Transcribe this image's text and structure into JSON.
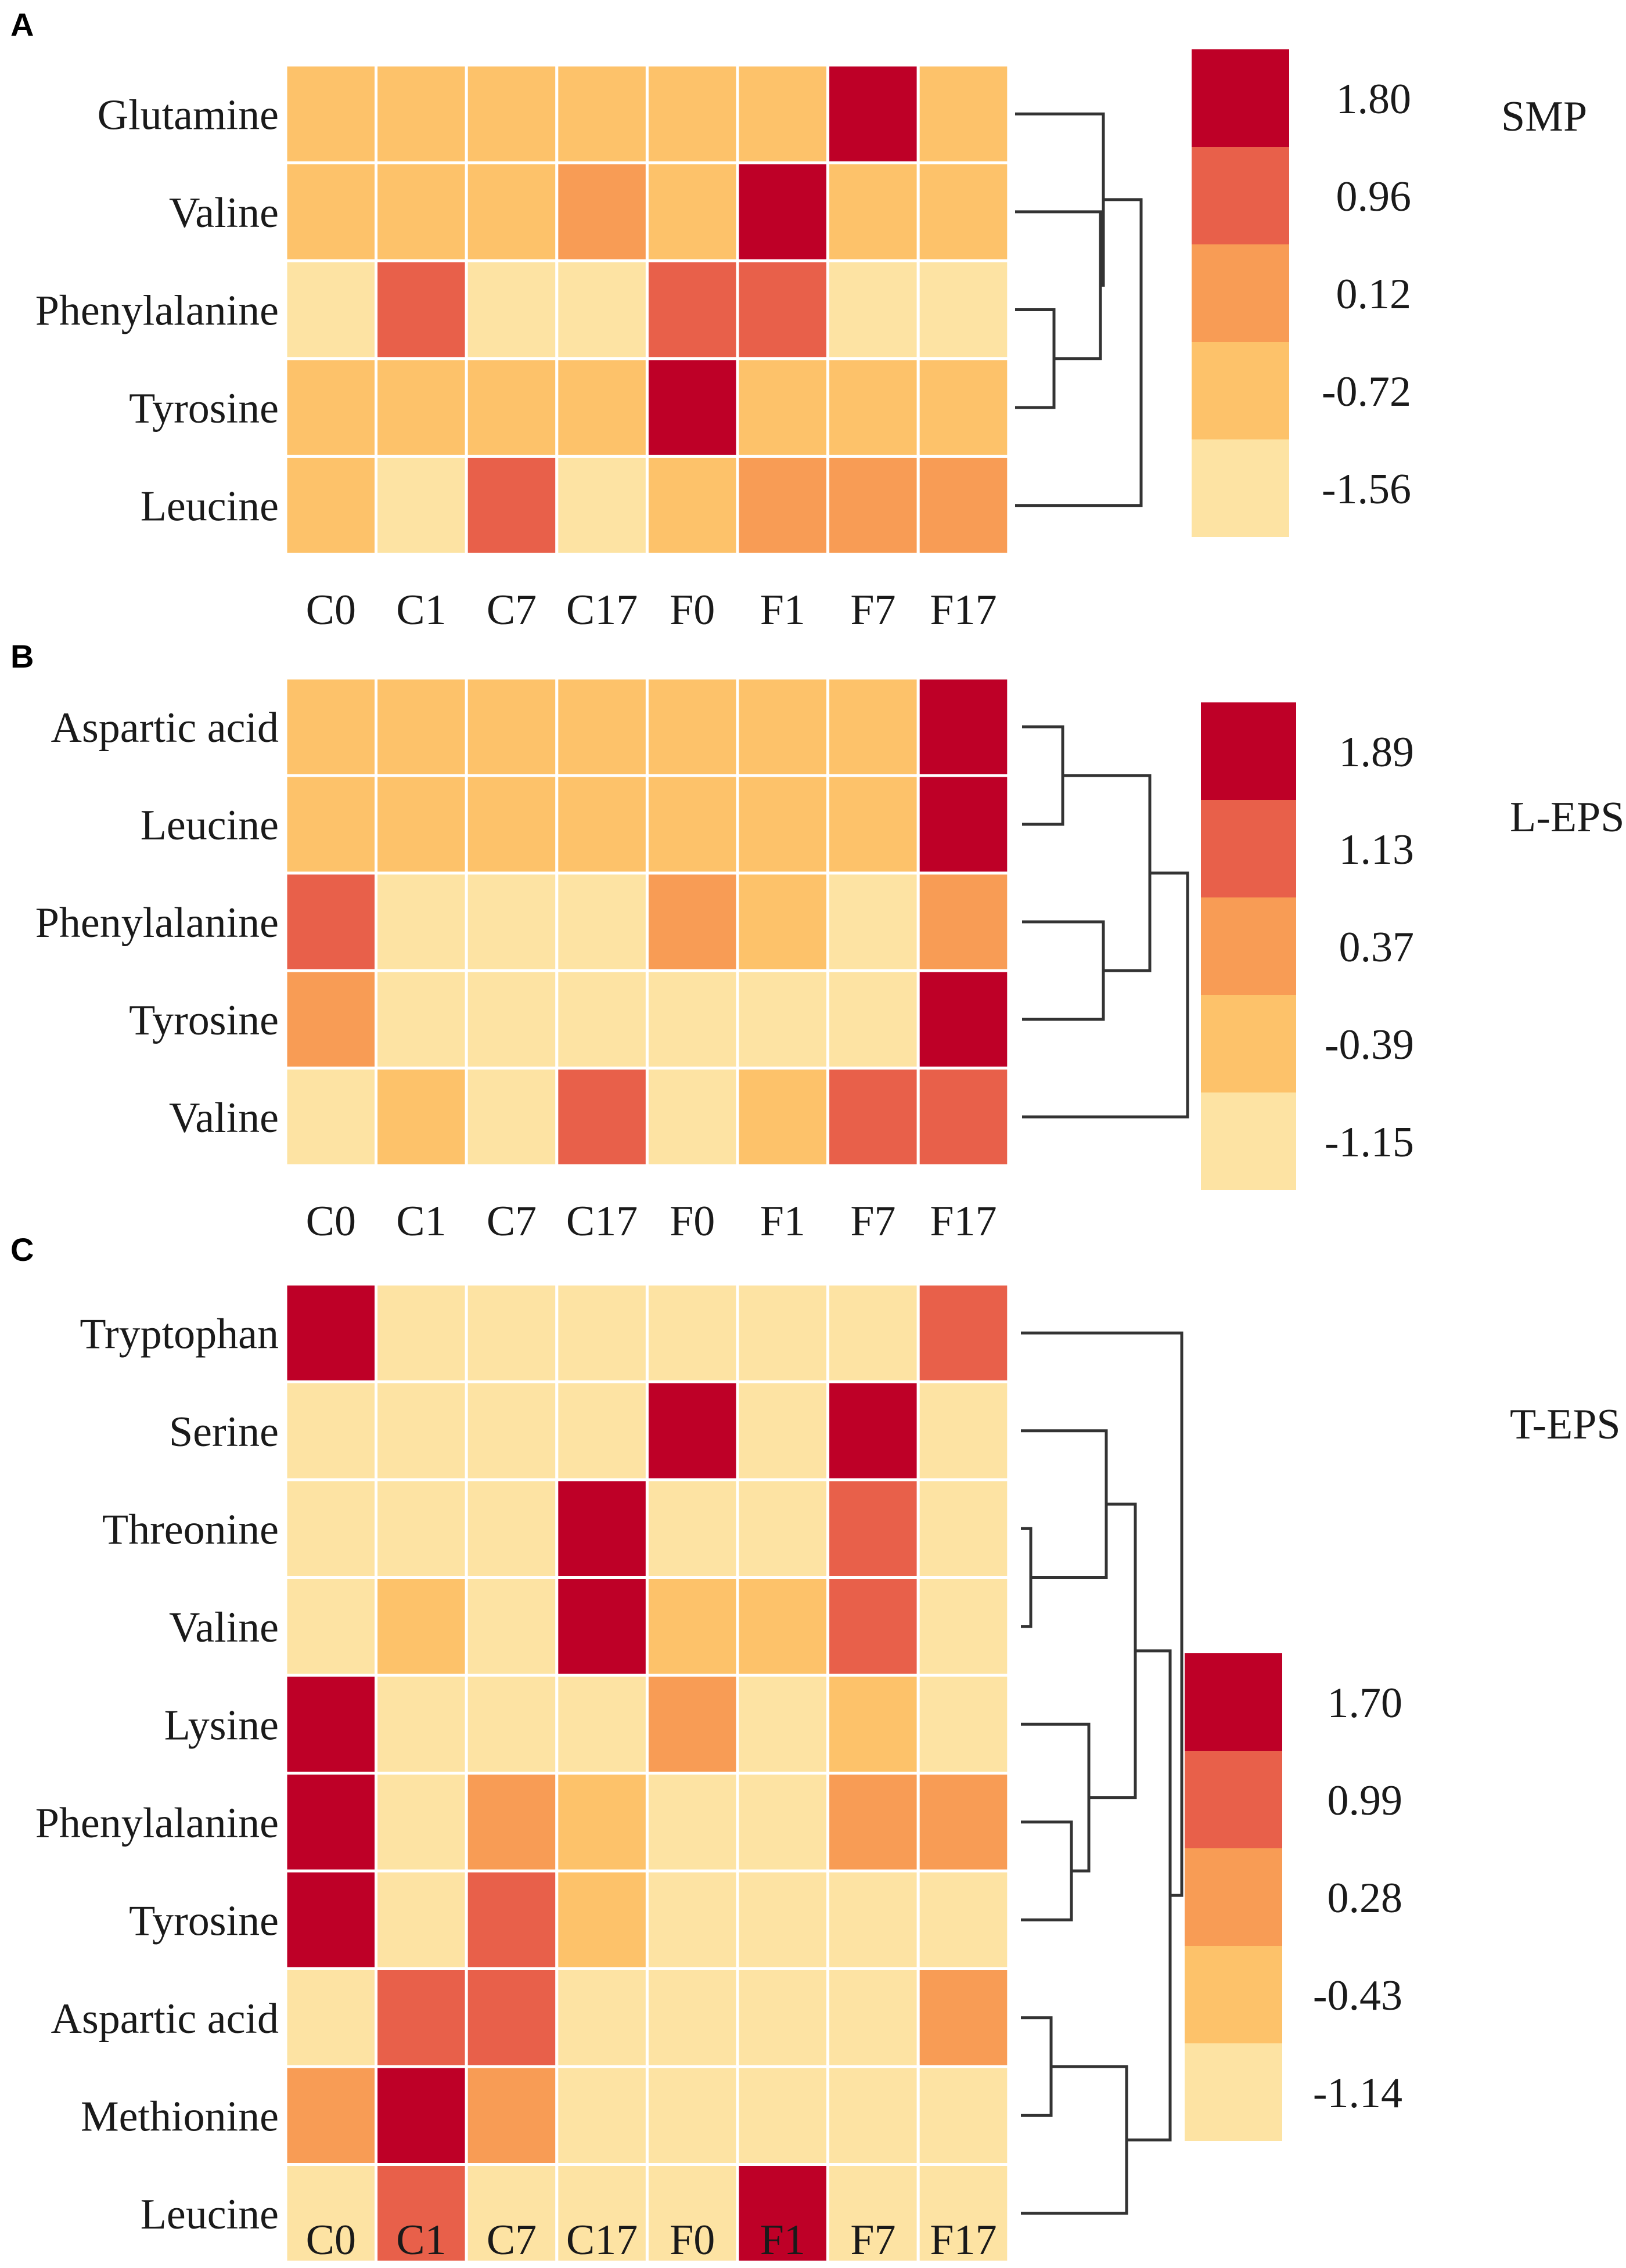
{
  "chart_data": [
    {
      "type": "heatmap",
      "panel": "A",
      "title": "SMP",
      "columns": [
        "C0",
        "C1",
        "C7",
        "C17",
        "F0",
        "F1",
        "F7",
        "F17"
      ],
      "rows": [
        "Glutamine",
        "Valine",
        "Phenylalanine",
        "Tyrosine",
        "Leucine"
      ],
      "values": [
        [
          -0.72,
          -0.72,
          -0.72,
          -0.72,
          -0.72,
          -0.72,
          1.8,
          -0.72
        ],
        [
          -0.72,
          -0.72,
          -0.72,
          0.12,
          -0.72,
          1.8,
          -0.72,
          -0.72
        ],
        [
          -1.56,
          0.96,
          -1.56,
          -1.56,
          0.96,
          0.96,
          -1.56,
          -1.56
        ],
        [
          -0.72,
          -0.72,
          -0.72,
          -0.72,
          1.8,
          -0.72,
          -0.72,
          -0.72
        ],
        [
          -0.72,
          -1.56,
          0.96,
          -1.56,
          -0.72,
          0.12,
          0.12,
          0.12
        ]
      ],
      "legend": {
        "ticks": [
          "1.80",
          "0.96",
          "0.12",
          "-0.72",
          "-1.56"
        ],
        "colors": [
          "#be0027",
          "#e8604a",
          "#f89c55",
          "#fdc26a",
          "#fde3a3"
        ]
      }
    },
    {
      "type": "heatmap",
      "panel": "B",
      "title": "L-EPS",
      "columns": [
        "C0",
        "C1",
        "C7",
        "C17",
        "F0",
        "F1",
        "F7",
        "F17"
      ],
      "rows": [
        "Aspartic acid",
        "Leucine",
        "Phenylalanine",
        "Tyrosine",
        "Valine"
      ],
      "values": [
        [
          -0.39,
          -0.39,
          -0.39,
          -0.39,
          -0.39,
          -0.39,
          -0.39,
          1.89
        ],
        [
          -0.39,
          -0.39,
          -0.39,
          -0.39,
          -0.39,
          -0.39,
          -0.39,
          1.89
        ],
        [
          1.13,
          -1.15,
          -1.15,
          -1.15,
          0.37,
          -0.39,
          -1.15,
          0.37
        ],
        [
          0.37,
          -1.15,
          -1.15,
          -1.15,
          -1.15,
          -1.15,
          -1.15,
          1.89
        ],
        [
          -1.15,
          -0.39,
          -1.15,
          1.13,
          -1.15,
          -0.39,
          1.13,
          1.13
        ]
      ],
      "legend": {
        "ticks": [
          "1.89",
          "1.13",
          "0.37",
          "-0.39",
          "-1.15"
        ],
        "colors": [
          "#be0027",
          "#e8604a",
          "#f89c55",
          "#fdc26a",
          "#fde3a3"
        ]
      }
    },
    {
      "type": "heatmap",
      "panel": "C",
      "title": "T-EPS",
      "columns": [
        "C0",
        "C1",
        "C7",
        "C17",
        "F0",
        "F1",
        "F7",
        "F17"
      ],
      "rows": [
        "Tryptophan",
        "Serine",
        "Threonine",
        "Valine",
        "Lysine",
        "Phenylalanine",
        "Tyrosine",
        "Aspartic acid",
        "Methionine",
        "Leucine"
      ],
      "values": [
        [
          1.7,
          -1.14,
          -1.14,
          -1.14,
          -1.14,
          -1.14,
          -1.14,
          0.99
        ],
        [
          -1.14,
          -1.14,
          -1.14,
          -1.14,
          1.7,
          -1.14,
          1.7,
          -1.14
        ],
        [
          -1.14,
          -1.14,
          -1.14,
          1.7,
          -1.14,
          -1.14,
          0.99,
          -1.14
        ],
        [
          -1.14,
          -0.43,
          -1.14,
          1.7,
          -0.43,
          -0.43,
          0.99,
          -1.14
        ],
        [
          1.7,
          -1.14,
          -1.14,
          -1.14,
          0.28,
          -1.14,
          -0.43,
          -1.14
        ],
        [
          1.7,
          -1.14,
          0.28,
          -0.43,
          -1.14,
          -1.14,
          0.28,
          0.28
        ],
        [
          1.7,
          -1.14,
          0.99,
          -0.43,
          -1.14,
          -1.14,
          -1.14,
          -1.14
        ],
        [
          -1.14,
          0.99,
          0.99,
          -1.14,
          -1.14,
          -1.14,
          -1.14,
          0.28
        ],
        [
          0.28,
          1.7,
          0.28,
          -1.14,
          -1.14,
          -1.14,
          -1.14,
          -1.14
        ],
        [
          -1.14,
          0.99,
          -1.14,
          -1.14,
          -1.14,
          1.7,
          -1.14,
          -1.14
        ]
      ],
      "legend": {
        "ticks": [
          "1.70",
          "0.99",
          "0.28",
          "-0.43",
          "-1.14"
        ],
        "colors": [
          "#be0027",
          "#e8604a",
          "#f89c55",
          "#fdc26a",
          "#fde3a3"
        ]
      }
    }
  ]
}
